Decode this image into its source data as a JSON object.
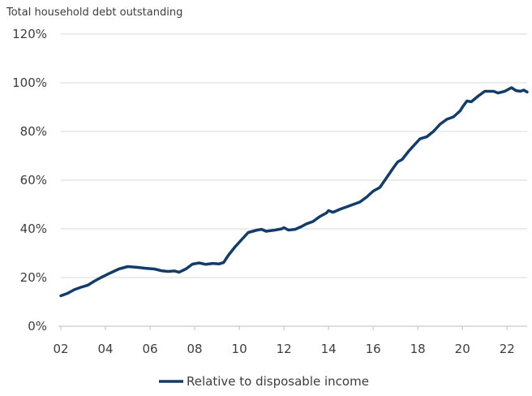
{
  "chart_data": {
    "type": "line",
    "title": "Total household debt outstanding",
    "xlabel": "",
    "ylabel": "",
    "xlim": [
      2002,
      2022.9
    ],
    "ylim": [
      0,
      120
    ],
    "x_ticks": [
      {
        "value": 2002,
        "label": "02"
      },
      {
        "value": 2004,
        "label": "04"
      },
      {
        "value": 2006,
        "label": "06"
      },
      {
        "value": 2008,
        "label": "08"
      },
      {
        "value": 2010,
        "label": "10"
      },
      {
        "value": 2012,
        "label": "12"
      },
      {
        "value": 2014,
        "label": "14"
      },
      {
        "value": 2016,
        "label": "16"
      },
      {
        "value": 2018,
        "label": "18"
      },
      {
        "value": 2020,
        "label": "20"
      },
      {
        "value": 2022,
        "label": "22"
      }
    ],
    "y_ticks": [
      {
        "value": 0,
        "label": "0%"
      },
      {
        "value": 20,
        "label": "20%"
      },
      {
        "value": 40,
        "label": "40%"
      },
      {
        "value": 60,
        "label": "60%"
      },
      {
        "value": 80,
        "label": "80%"
      },
      {
        "value": 100,
        "label": "100%"
      },
      {
        "value": 120,
        "label": "120%"
      }
    ],
    "grid": true,
    "legend_position": "bottom-center",
    "colors": {
      "series": "#123c69",
      "grid": "#d9d9d9",
      "axis": "#bfbfbf",
      "text": "#3d3d3d"
    },
    "series": [
      {
        "name": "Relative to disposable income",
        "points": [
          [
            2002.0,
            12.5
          ],
          [
            2002.3,
            13.5
          ],
          [
            2002.6,
            15.0
          ],
          [
            2002.9,
            16.0
          ],
          [
            2003.2,
            16.8
          ],
          [
            2003.5,
            18.5
          ],
          [
            2003.8,
            20.0
          ],
          [
            2004.2,
            21.8
          ],
          [
            2004.6,
            23.5
          ],
          [
            2005.0,
            24.5
          ],
          [
            2005.4,
            24.2
          ],
          [
            2005.8,
            23.8
          ],
          [
            2006.2,
            23.5
          ],
          [
            2006.5,
            22.8
          ],
          [
            2006.8,
            22.5
          ],
          [
            2007.1,
            22.7
          ],
          [
            2007.3,
            22.2
          ],
          [
            2007.6,
            23.5
          ],
          [
            2007.9,
            25.5
          ],
          [
            2008.2,
            26.0
          ],
          [
            2008.5,
            25.4
          ],
          [
            2008.8,
            25.8
          ],
          [
            2009.1,
            25.6
          ],
          [
            2009.3,
            26.2
          ],
          [
            2009.5,
            29.0
          ],
          [
            2009.8,
            32.5
          ],
          [
            2010.1,
            35.5
          ],
          [
            2010.4,
            38.5
          ],
          [
            2010.8,
            39.5
          ],
          [
            2011.0,
            39.8
          ],
          [
            2011.2,
            39.0
          ],
          [
            2011.6,
            39.5
          ],
          [
            2011.9,
            40.0
          ],
          [
            2012.0,
            40.5
          ],
          [
            2012.2,
            39.5
          ],
          [
            2012.5,
            39.8
          ],
          [
            2012.8,
            41.0
          ],
          [
            2013.0,
            42.0
          ],
          [
            2013.3,
            43.0
          ],
          [
            2013.6,
            45.0
          ],
          [
            2013.9,
            46.5
          ],
          [
            2014.0,
            47.5
          ],
          [
            2014.2,
            46.8
          ],
          [
            2014.5,
            48.0
          ],
          [
            2014.8,
            49.0
          ],
          [
            2015.1,
            50.0
          ],
          [
            2015.4,
            51.0
          ],
          [
            2015.7,
            53.0
          ],
          [
            2016.0,
            55.5
          ],
          [
            2016.3,
            57.0
          ],
          [
            2016.6,
            61.0
          ],
          [
            2016.9,
            65.0
          ],
          [
            2017.1,
            67.5
          ],
          [
            2017.3,
            68.5
          ],
          [
            2017.6,
            72.0
          ],
          [
            2017.9,
            75.0
          ],
          [
            2018.1,
            77.0
          ],
          [
            2018.4,
            77.8
          ],
          [
            2018.7,
            80.0
          ],
          [
            2019.0,
            83.0
          ],
          [
            2019.3,
            85.0
          ],
          [
            2019.6,
            86.0
          ],
          [
            2019.9,
            88.5
          ],
          [
            2020.0,
            90.0
          ],
          [
            2020.2,
            92.5
          ],
          [
            2020.4,
            92.2
          ],
          [
            2020.7,
            94.5
          ],
          [
            2021.0,
            96.5
          ],
          [
            2021.4,
            96.5
          ],
          [
            2021.6,
            95.8
          ],
          [
            2021.9,
            96.5
          ],
          [
            2022.0,
            97.0
          ],
          [
            2022.2,
            98.0
          ],
          [
            2022.4,
            96.8
          ],
          [
            2022.6,
            96.5
          ],
          [
            2022.75,
            97.0
          ],
          [
            2022.9,
            96.2
          ]
        ]
      }
    ]
  }
}
